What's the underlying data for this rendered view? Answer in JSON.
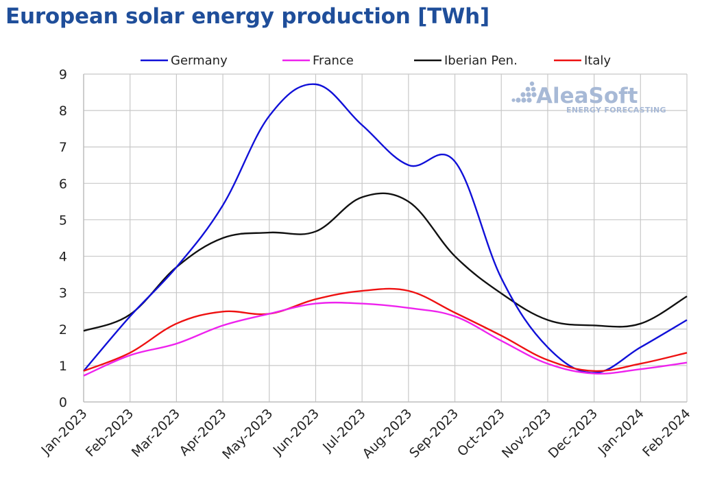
{
  "title": "European solar energy production [TWh]",
  "watermark": {
    "brand": "AleaSoft",
    "tagline": "ENERGY FORECASTING",
    "color": "#a7b9d6"
  },
  "chart_data": {
    "type": "line",
    "title": "European solar energy production [TWh]",
    "xlabel": "",
    "ylabel": "",
    "categories": [
      "Jan-2023",
      "Feb-2023",
      "Mar-2023",
      "Apr-2023",
      "May-2023",
      "Jun-2023",
      "Jul-2023",
      "Aug-2023",
      "Sep-2023",
      "Oct-2023",
      "Nov-2023",
      "Dec-2023",
      "Jan-2024",
      "Feb-2024"
    ],
    "ylim": [
      0,
      9
    ],
    "yticks": [
      0,
      1,
      2,
      3,
      4,
      5,
      6,
      7,
      8,
      9
    ],
    "grid": true,
    "legend_position": "top",
    "series": [
      {
        "name": "Germany",
        "color": "#1010d8",
        "values": [
          0.85,
          2.35,
          3.7,
          5.4,
          7.85,
          8.72,
          7.6,
          6.5,
          6.6,
          3.4,
          1.5,
          0.8,
          1.5,
          2.25
        ]
      },
      {
        "name": "France",
        "color": "#ee22ee",
        "values": [
          0.72,
          1.28,
          1.6,
          2.1,
          2.42,
          2.7,
          2.7,
          2.58,
          2.35,
          1.68,
          1.05,
          0.78,
          0.9,
          1.08
        ]
      },
      {
        "name": "Iberian Pen.",
        "color": "#111111",
        "values": [
          1.95,
          2.4,
          3.7,
          4.5,
          4.65,
          4.68,
          5.62,
          5.5,
          4.0,
          2.98,
          2.25,
          2.1,
          2.15,
          2.9
        ]
      },
      {
        "name": "Italy",
        "color": "#ee1111",
        "values": [
          0.85,
          1.35,
          2.15,
          2.48,
          2.42,
          2.82,
          3.05,
          3.05,
          2.45,
          1.82,
          1.15,
          0.85,
          1.05,
          1.35
        ]
      }
    ]
  }
}
